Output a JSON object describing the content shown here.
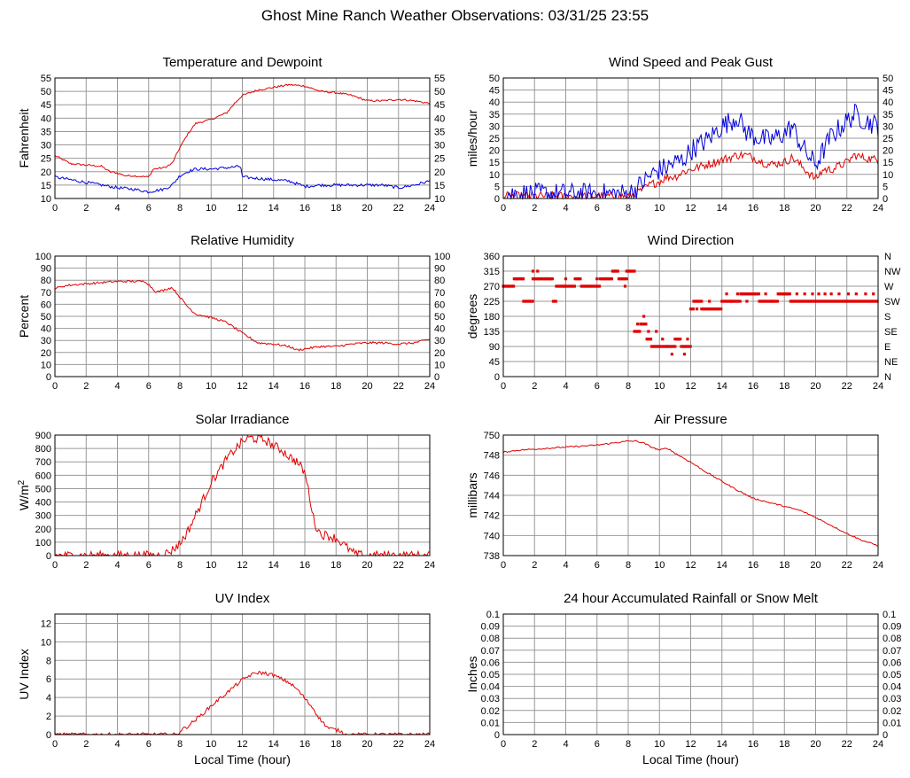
{
  "title": "Ghost Mine Ranch Weather Observations: 03/31/25 23:55",
  "x_axis_label": "Local Time (hour)",
  "colors": {
    "red": "#e00000",
    "blue": "#0000dd",
    "grid": "#999999"
  },
  "chart_data": [
    {
      "id": "temperature",
      "type": "line",
      "title": "Temperature and Dewpoint",
      "ylabel": "Fahrenheit",
      "right_ticks": true,
      "xlim": [
        0,
        24
      ],
      "ylim": [
        10,
        55
      ],
      "xticks": [
        0,
        2,
        4,
        6,
        8,
        10,
        12,
        14,
        16,
        18,
        20,
        22,
        24
      ],
      "yticks": [
        10,
        15,
        20,
        25,
        30,
        35,
        40,
        45,
        50,
        55
      ],
      "grid": true,
      "series": [
        {
          "color": "red",
          "noise": 0.35,
          "x": [
            0,
            0.5,
            1,
            2,
            3,
            3.5,
            4,
            4.5,
            5,
            6,
            6.3,
            7,
            7.5,
            8,
            8.5,
            9,
            10,
            11,
            11.5,
            12,
            13,
            14,
            15,
            16,
            17,
            18,
            19,
            20,
            21,
            22,
            23,
            24
          ],
          "y": [
            26,
            24.5,
            23,
            22.5,
            22,
            20,
            19.5,
            18.5,
            18.5,
            18,
            21,
            21.5,
            23,
            29,
            34,
            38,
            39.5,
            42,
            45.5,
            48.5,
            50.5,
            51.5,
            52.5,
            52,
            50,
            49.5,
            48.5,
            46.5,
            46.5,
            47,
            46.5,
            45.5
          ]
        },
        {
          "color": "blue",
          "noise": 0.55,
          "x": [
            0,
            1,
            2,
            3,
            4,
            5,
            6,
            7,
            7.5,
            8,
            8.5,
            9,
            10,
            11,
            11.9,
            12,
            13,
            14,
            15,
            15.5,
            16,
            17,
            18,
            19,
            20,
            21,
            22,
            23,
            24
          ],
          "y": [
            18,
            17,
            16,
            15,
            14,
            13.5,
            12.5,
            13.5,
            15,
            18.5,
            20,
            21,
            21,
            21.5,
            22,
            18,
            17.5,
            17,
            16.5,
            15.5,
            14.5,
            15,
            15,
            15,
            15,
            15,
            14,
            15,
            16.5
          ]
        }
      ]
    },
    {
      "id": "wind-speed",
      "type": "line",
      "title": "Wind Speed and Peak Gust",
      "ylabel": "miles/hour",
      "right_ticks": true,
      "xlim": [
        0,
        24
      ],
      "ylim": [
        0,
        50
      ],
      "xticks": [
        0,
        2,
        4,
        6,
        8,
        10,
        12,
        14,
        16,
        18,
        20,
        22,
        24
      ],
      "yticks": [
        0,
        5,
        10,
        15,
        20,
        25,
        30,
        35,
        40,
        45,
        50
      ],
      "grid": true,
      "series": [
        {
          "color": "red",
          "noise": 1.8,
          "x": [
            0,
            2,
            4,
            6,
            8,
            8.5,
            9,
            9.5,
            10,
            10.5,
            11,
            11.5,
            12,
            13,
            14,
            14.5,
            15,
            15.5,
            16,
            17,
            18,
            18.5,
            19,
            19.5,
            20,
            20.5,
            21,
            22,
            22.5,
            23,
            24
          ],
          "y": [
            1,
            1,
            1,
            1,
            1,
            2,
            4,
            6,
            7,
            9,
            9,
            11,
            12,
            14,
            16,
            17,
            18,
            18,
            17,
            14,
            15,
            17,
            14,
            11,
            8,
            12,
            12,
            15,
            18,
            17,
            16
          ]
        },
        {
          "color": "blue",
          "noise": 4.5,
          "x": [
            0,
            2,
            4,
            6,
            8,
            8.5,
            9,
            9.5,
            10,
            10.5,
            11,
            11.5,
            12,
            13,
            14,
            14.5,
            15,
            15.5,
            16,
            17,
            18,
            18.5,
            19,
            19.5,
            20,
            20.5,
            21,
            22,
            22.5,
            23,
            24
          ],
          "y": [
            2,
            2,
            2,
            2,
            2,
            4,
            7,
            10,
            12,
            13,
            15,
            16,
            20,
            24,
            30,
            32,
            34,
            28,
            26,
            24,
            27,
            30,
            23,
            18,
            14,
            20,
            26,
            32,
            35,
            33,
            30
          ]
        }
      ]
    },
    {
      "id": "humidity",
      "type": "line",
      "title": "Relative Humidity",
      "ylabel": "Percent",
      "right_ticks": true,
      "xlim": [
        0,
        24
      ],
      "ylim": [
        0,
        100
      ],
      "xticks": [
        0,
        2,
        4,
        6,
        8,
        10,
        12,
        14,
        16,
        18,
        20,
        22,
        24
      ],
      "yticks": [
        0,
        10,
        20,
        30,
        40,
        50,
        60,
        70,
        80,
        90,
        100
      ],
      "grid": true,
      "series": [
        {
          "color": "red",
          "noise": 0.9,
          "x": [
            0,
            0.5,
            1,
            2,
            3,
            4,
            5,
            5.8,
            6.5,
            7,
            7.5,
            8,
            8.5,
            9,
            10,
            11,
            12,
            13,
            14,
            15,
            15.5,
            16,
            17,
            18,
            19,
            20,
            21,
            22,
            23,
            24
          ],
          "y": [
            73,
            75,
            76,
            77,
            78,
            79,
            79,
            79,
            70,
            72,
            74,
            66,
            58,
            52,
            49,
            45,
            36,
            28,
            27,
            25,
            22,
            23,
            25,
            25,
            27,
            28,
            28,
            27,
            28,
            31
          ]
        }
      ]
    },
    {
      "id": "wind-direction",
      "type": "scatter",
      "title": "Wind Direction",
      "ylabel": "degrees",
      "right_ticks": false,
      "right_labels": [
        "N",
        "NE",
        "E",
        "SE",
        "S",
        "SW",
        "W",
        "NW",
        "N"
      ],
      "xlim": [
        0,
        24
      ],
      "ylim": [
        0,
        360
      ],
      "xticks": [
        0,
        2,
        4,
        6,
        8,
        10,
        12,
        14,
        16,
        18,
        20,
        22,
        24
      ],
      "yticks": [
        0,
        45,
        90,
        135,
        180,
        225,
        270,
        315,
        360
      ],
      "grid": true,
      "segments": [
        [
          0,
          0.7,
          270
        ],
        [
          0.7,
          1.3,
          292
        ],
        [
          1.3,
          1.9,
          225
        ],
        [
          1.9,
          3.2,
          292
        ],
        [
          3.2,
          3.4,
          225
        ],
        [
          3.4,
          3.9,
          270
        ],
        [
          3.9,
          4.6,
          270
        ],
        [
          4.6,
          5.0,
          292
        ],
        [
          5.0,
          6.2,
          270
        ],
        [
          6.2,
          7.0,
          292
        ],
        [
          7.0,
          7.4,
          315
        ],
        [
          7.4,
          7.9,
          292
        ],
        [
          7.9,
          8.4,
          315
        ],
        [
          8.4,
          8.8,
          135
        ],
        [
          8.8,
          9.2,
          157
        ],
        [
          9.2,
          9.5,
          112
        ],
        [
          9.5,
          10.5,
          90
        ],
        [
          10.5,
          11.0,
          90
        ],
        [
          11.0,
          11.4,
          112
        ],
        [
          11.4,
          12.0,
          90
        ],
        [
          12.0,
          12.2,
          202
        ],
        [
          12.2,
          12.7,
          225
        ],
        [
          12.7,
          14.0,
          202
        ],
        [
          14.0,
          15.2,
          225
        ],
        [
          15.2,
          16.4,
          247
        ],
        [
          16.4,
          17.6,
          225
        ],
        [
          17.6,
          18.4,
          247
        ],
        [
          18.4,
          24.0,
          225
        ]
      ],
      "extra_points": [
        [
          1.9,
          315
        ],
        [
          2.2,
          315
        ],
        [
          4.0,
          292
        ],
        [
          6.0,
          292
        ],
        [
          7.8,
          270
        ],
        [
          8.6,
          157
        ],
        [
          9.0,
          180
        ],
        [
          9.3,
          135
        ],
        [
          9.8,
          135
        ],
        [
          10.2,
          112
        ],
        [
          10.8,
          67
        ],
        [
          11.2,
          112
        ],
        [
          11.6,
          67
        ],
        [
          11.8,
          112
        ],
        [
          12.4,
          202
        ],
        [
          13.2,
          225
        ],
        [
          14.3,
          247
        ],
        [
          14.6,
          225
        ],
        [
          15.0,
          247
        ],
        [
          15.6,
          225
        ],
        [
          16.0,
          247
        ],
        [
          16.8,
          247
        ],
        [
          17.2,
          225
        ],
        [
          18.1,
          247
        ],
        [
          18.8,
          247
        ],
        [
          19.3,
          247
        ],
        [
          19.8,
          247
        ],
        [
          20.2,
          247
        ],
        [
          20.6,
          247
        ],
        [
          21.0,
          247
        ],
        [
          21.5,
          247
        ],
        [
          22.1,
          247
        ],
        [
          22.6,
          247
        ],
        [
          23.2,
          247
        ],
        [
          23.7,
          247
        ]
      ]
    },
    {
      "id": "solar",
      "type": "line",
      "title": "Solar Irradiance",
      "ylabel": "W/m2",
      "right_ticks": false,
      "xlim": [
        0,
        24
      ],
      "ylim": [
        0,
        900
      ],
      "xticks": [
        0,
        2,
        4,
        6,
        8,
        10,
        12,
        14,
        16,
        18,
        20,
        22,
        24
      ],
      "yticks": [
        0,
        100,
        200,
        300,
        400,
        500,
        600,
        700,
        800,
        900
      ],
      "grid": true,
      "series": [
        {
          "color": "red",
          "noise": 35,
          "x": [
            0,
            6.5,
            7,
            7.5,
            8,
            8.5,
            9,
            9.5,
            10,
            10.5,
            11,
            11.5,
            12,
            12.5,
            13,
            13.5,
            14,
            14.5,
            15,
            15.5,
            16,
            16.3,
            16.6,
            17,
            17.5,
            18,
            18.5,
            19,
            19.3,
            20,
            24
          ],
          "y": [
            0,
            0,
            10,
            40,
            90,
            180,
            300,
            420,
            550,
            630,
            720,
            790,
            850,
            880,
            870,
            860,
            820,
            790,
            740,
            700,
            620,
            450,
            250,
            160,
            150,
            130,
            80,
            30,
            5,
            0,
            0
          ]
        }
      ]
    },
    {
      "id": "pressure",
      "type": "line",
      "title": "Air Pressure",
      "ylabel": "millibars",
      "right_ticks": false,
      "xlim": [
        0,
        24
      ],
      "ylim": [
        738,
        750
      ],
      "xticks": [
        0,
        2,
        4,
        6,
        8,
        10,
        12,
        14,
        16,
        18,
        20,
        22,
        24
      ],
      "yticks": [
        738,
        740,
        742,
        744,
        746,
        748,
        750
      ],
      "grid": true,
      "series": [
        {
          "color": "red",
          "noise": 0.07,
          "x": [
            0,
            1,
            2,
            3,
            4,
            5,
            6,
            7,
            8,
            8.5,
            9,
            9.5,
            10,
            10.5,
            11,
            12,
            13,
            14,
            15,
            16,
            17,
            18,
            19,
            20,
            21,
            22,
            23,
            24
          ],
          "y": [
            748.3,
            748.5,
            748.6,
            748.7,
            748.8,
            748.9,
            749.0,
            749.2,
            749.4,
            749.4,
            749.2,
            748.8,
            748.5,
            748.7,
            748.2,
            747.3,
            746.3,
            745.4,
            744.5,
            743.7,
            743.3,
            742.9,
            742.5,
            741.8,
            741.0,
            740.2,
            739.5,
            739.0
          ]
        }
      ]
    },
    {
      "id": "uv",
      "type": "line",
      "title": "UV Index",
      "ylabel": "UV Index",
      "right_ticks": false,
      "xlim": [
        0,
        24
      ],
      "ylim": [
        0,
        13
      ],
      "xticks": [
        0,
        2,
        4,
        6,
        8,
        10,
        12,
        14,
        16,
        18,
        20,
        22,
        24
      ],
      "yticks": [
        0,
        2,
        4,
        6,
        8,
        10,
        12
      ],
      "grid": true,
      "series": [
        {
          "color": "red",
          "noise": 0.2,
          "x": [
            0,
            7.9,
            8,
            8.5,
            9,
            9.5,
            10,
            10.5,
            11,
            11.5,
            12,
            12.5,
            13,
            13.5,
            14,
            14.5,
            15,
            15.5,
            16,
            16.5,
            17,
            17.5,
            18,
            18.3,
            18.5,
            24
          ],
          "y": [
            0,
            0,
            0.4,
            0.9,
            1.6,
            2.3,
            3.1,
            3.8,
            4.5,
            5.2,
            5.9,
            6.4,
            6.7,
            6.6,
            6.4,
            6.0,
            5.6,
            4.9,
            3.9,
            2.9,
            1.6,
            0.7,
            0.5,
            0.4,
            0,
            0
          ]
        }
      ]
    },
    {
      "id": "rainfall",
      "type": "line",
      "title": "24 hour Accumulated Rainfall or Snow Melt",
      "ylabel": "Inches",
      "right_ticks": true,
      "xlim": [
        0,
        24
      ],
      "ylim": [
        0,
        0.1
      ],
      "xticks": [
        0,
        2,
        4,
        6,
        8,
        10,
        12,
        14,
        16,
        18,
        20,
        22,
        24
      ],
      "yticks": [
        0.0,
        0.01,
        0.02,
        0.03,
        0.04,
        0.05,
        0.06,
        0.07,
        0.08,
        0.09,
        0.1
      ],
      "grid": true,
      "series": [
        {
          "color": "red",
          "noise": 0,
          "x": [
            0,
            24
          ],
          "y": [
            0,
            0
          ]
        }
      ]
    }
  ]
}
